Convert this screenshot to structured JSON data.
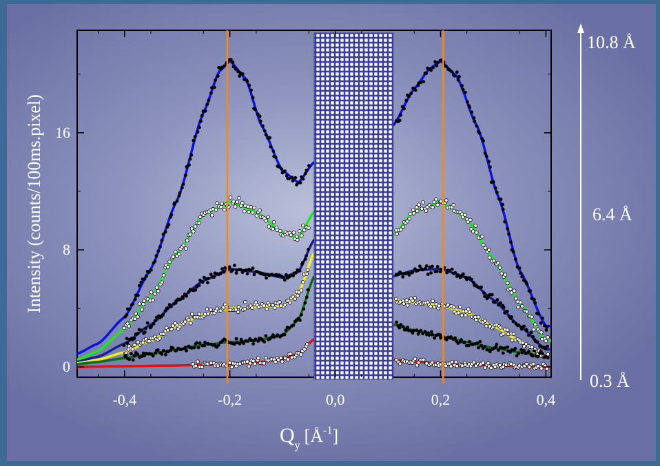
{
  "chart_data": {
    "type": "scatter",
    "xlabel": "Q",
    "xlabel_sub": "y",
    "xlabel_unit_open": "[Å",
    "xlabel_unit_sup": "-1",
    "xlabel_unit_close": "]",
    "ylabel": "Intensity (counts/100ms.pixel)",
    "xlim": [
      -0.49,
      0.41
    ],
    "ylim": [
      -0.7,
      23.0
    ],
    "x_ticks": [
      -0.4,
      -0.2,
      0.0,
      0.2,
      0.4
    ],
    "x_tick_labels": [
      "-0,4",
      "-0,2",
      "0,0",
      "0,2",
      "0,4"
    ],
    "y_ticks": [
      0,
      8,
      16
    ],
    "y_tick_labels": [
      "0",
      "8",
      "16"
    ],
    "masked_region": [
      -0.04,
      0.11
    ],
    "vertical_lines": [
      -0.205,
      0.205
    ],
    "right_scale_labels": [
      "10.8 Å",
      "6.4 Å",
      "0.3 Å"
    ],
    "colors": {
      "blue": "#0a14d8",
      "green": "#1ee81e",
      "dark_blue": "#16208a",
      "yellow": "#f0f020",
      "dark_green": "#0f6a14",
      "red": "#e21010",
      "orange": "#f08a1e"
    },
    "series": [
      {
        "fit_color": "#0a14d8",
        "marker": "black",
        "x": [
          -0.49,
          -0.45,
          -0.4,
          -0.35,
          -0.3,
          -0.25,
          -0.22,
          -0.2,
          -0.17,
          -0.14,
          -0.1,
          -0.07,
          -0.04,
          0.11,
          0.15,
          0.18,
          0.2,
          0.23,
          0.27,
          0.31,
          0.35,
          0.4
        ],
        "y": [
          0.9,
          1.6,
          3.4,
          6.7,
          11.4,
          17.4,
          20.2,
          20.9,
          19.7,
          16.5,
          13.4,
          12.6,
          14.0,
          16.5,
          19.0,
          20.4,
          20.9,
          19.9,
          16.4,
          11.6,
          6.6,
          2.8
        ]
      },
      {
        "fit_color": "#1ee81e",
        "marker": "white",
        "x": [
          -0.49,
          -0.45,
          -0.4,
          -0.35,
          -0.3,
          -0.25,
          -0.2,
          -0.15,
          -0.1,
          -0.07,
          -0.04,
          0.11,
          0.15,
          0.2,
          0.25,
          0.3,
          0.35,
          0.4
        ],
        "y": [
          0.5,
          1.1,
          2.6,
          4.8,
          7.8,
          10.4,
          11.3,
          10.6,
          9.2,
          8.8,
          10.6,
          9.0,
          10.6,
          11.3,
          10.1,
          7.4,
          4.4,
          1.8
        ]
      },
      {
        "fit_color": "#16208a",
        "marker": "black",
        "x": [
          -0.49,
          -0.45,
          -0.4,
          -0.35,
          -0.3,
          -0.25,
          -0.2,
          -0.15,
          -0.1,
          -0.07,
          -0.04,
          0.11,
          0.15,
          0.2,
          0.25,
          0.3,
          0.35,
          0.4
        ],
        "y": [
          0.35,
          0.7,
          1.6,
          2.9,
          4.5,
          5.9,
          6.7,
          6.5,
          6.1,
          6.5,
          8.7,
          6.2,
          6.6,
          6.7,
          6.1,
          4.6,
          2.8,
          1.2
        ]
      },
      {
        "fit_color": "#f0f020",
        "marker": "white",
        "x": [
          -0.49,
          -0.45,
          -0.4,
          -0.35,
          -0.3,
          -0.25,
          -0.2,
          -0.15,
          -0.1,
          -0.07,
          -0.04,
          0.11,
          0.15,
          0.2,
          0.25,
          0.3,
          0.35,
          0.4
        ],
        "y": [
          0.25,
          0.5,
          1.0,
          1.8,
          2.8,
          3.6,
          4.0,
          4.1,
          4.2,
          5.0,
          7.8,
          4.6,
          4.4,
          4.2,
          3.7,
          2.8,
          1.8,
          0.8
        ]
      },
      {
        "fit_color": "#0f6a14",
        "marker": "black",
        "x": [
          -0.49,
          -0.45,
          -0.4,
          -0.35,
          -0.3,
          -0.25,
          -0.2,
          -0.15,
          -0.1,
          -0.07,
          -0.04,
          0.11,
          0.15,
          0.2,
          0.25,
          0.3,
          0.35,
          0.4
        ],
        "y": [
          0.2,
          0.35,
          0.6,
          0.9,
          1.2,
          1.5,
          1.7,
          1.8,
          2.2,
          3.2,
          6.2,
          2.9,
          2.5,
          2.1,
          1.7,
          1.3,
          1.0,
          0.8
        ]
      },
      {
        "fit_color": "#e21010",
        "marker": "white",
        "x": [
          -0.49,
          -0.4,
          -0.3,
          -0.25,
          -0.2,
          -0.15,
          -0.1,
          -0.07,
          -0.04,
          0.11,
          0.15,
          0.2,
          0.25,
          0.3,
          0.35,
          0.4
        ],
        "y": [
          0.0,
          0.05,
          0.1,
          0.15,
          0.2,
          0.3,
          0.55,
          0.9,
          1.9,
          0.5,
          0.35,
          0.25,
          0.15,
          0.1,
          0.05,
          0.0
        ]
      }
    ]
  }
}
